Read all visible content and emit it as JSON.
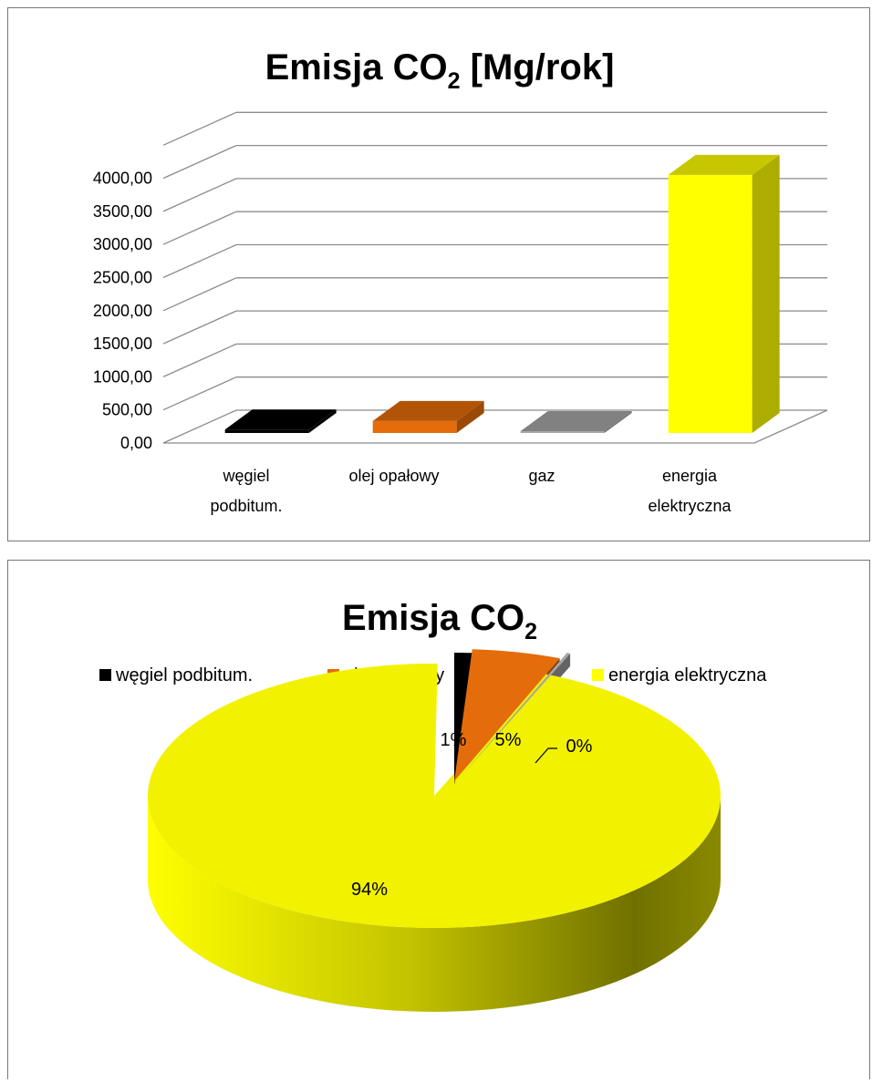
{
  "chart_data": [
    {
      "type": "bar",
      "title_main": "Emisja CO",
      "title_sub": "2",
      "title_suffix": " [Mg/rok]",
      "categories": [
        [
          "węgiel",
          "podbitum."
        ],
        [
          "olej opałowy"
        ],
        [
          "gaz"
        ],
        [
          "energia",
          "elektryczna"
        ]
      ],
      "values": [
        52,
        180,
        14,
        3900
      ],
      "colors": [
        "#000000",
        "#e46c0a",
        "#a6a6a6",
        "#ffff00"
      ],
      "ylim": [
        0,
        4000
      ],
      "yticks": [
        "0,00",
        "500,00",
        "1000,00",
        "1500,00",
        "2000,00",
        "2500,00",
        "3000,00",
        "3500,00",
        "4000,00"
      ],
      "grid": true,
      "three_d": true
    },
    {
      "type": "pie",
      "title_main": "Emisja CO",
      "title_sub": "2",
      "legend_position": "top",
      "labels": [
        "węgiel podbitum.",
        "olej opałowy",
        "gaz",
        "energia elektryczna"
      ],
      "values": [
        1,
        5,
        0,
        94
      ],
      "data_labels": [
        "1%",
        "5%",
        "0%",
        "94%"
      ],
      "colors": [
        "#000000",
        "#e46c0a",
        "#a6a6a6",
        "#ffff00"
      ],
      "exploded": true,
      "three_d": true
    }
  ]
}
